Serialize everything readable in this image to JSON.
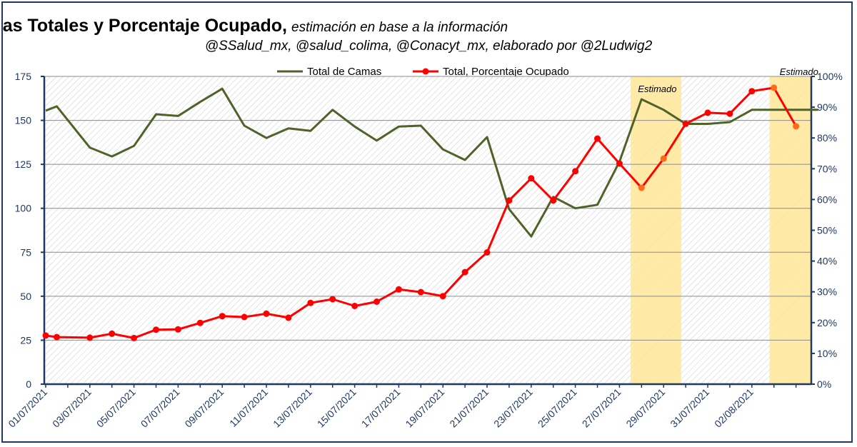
{
  "chart_data": {
    "type": "line",
    "title": "Camas Totales y Porcentaje Ocupado,",
    "subtitle_line1": "estimación en base a la información",
    "subtitle_line2": "@SSalud_mx, @salud_colima, @Conacyt_mx, elaborado por @2Ludwig2",
    "x_tick_labels": [
      "01/07/2021",
      "03/07/2021",
      "05/07/2021",
      "07/07/2021",
      "09/07/2021",
      "11/07/2021",
      "13/07/2021",
      "15/07/2021",
      "17/07/2021",
      "19/07/2021",
      "21/07/2021",
      "23/07/2021",
      "25/07/2021",
      "27/07/2021",
      "29/07/2021",
      "31/07/2021",
      "02/08/2021"
    ],
    "y_left": {
      "min": 0,
      "max": 175,
      "ticks": [
        "0",
        "25",
        "50",
        "75",
        "100",
        "125",
        "150",
        "175"
      ]
    },
    "y_right": {
      "min": 0,
      "max": 100,
      "ticks": [
        "0%",
        "10%",
        "20%",
        "30%",
        "40%",
        "50%",
        "60%",
        "70%",
        "80%",
        "90%",
        "100%"
      ]
    },
    "estimated_regions": [
      {
        "label": "Estimado",
        "start_day": 26.5,
        "end_day": 28.8
      },
      {
        "label": "Estimado",
        "start_day": 32.8,
        "end_day": 35.2
      }
    ],
    "series": [
      {
        "name": "Total de Camas",
        "color": "#4f6228",
        "axis": "left",
        "markers": false,
        "x": [
          0,
          0.5,
          2,
          3,
          4,
          5,
          6,
          7,
          8,
          9,
          10,
          11,
          12,
          13,
          14,
          15,
          16,
          17,
          18,
          19,
          20,
          21,
          22,
          23,
          24,
          25,
          26,
          27,
          28,
          29,
          30,
          31,
          32,
          33,
          34,
          35
        ],
        "values": [
          155.5,
          158,
          134.5,
          129.5,
          135.5,
          153.5,
          152.5,
          160.5,
          168,
          147,
          140,
          145.5,
          144,
          156,
          146.5,
          138.5,
          146.5,
          147,
          133.5,
          127.5,
          140.5,
          99.5,
          84,
          106.5,
          100,
          102,
          126.5,
          162,
          156,
          148,
          148,
          149,
          156,
          156,
          156,
          156
        ]
      },
      {
        "name": "Total, Porcentaje Ocupado",
        "color": "#ff0000",
        "estimated_color": "#ff6a1a",
        "axis": "right",
        "markers": true,
        "x": [
          0,
          0.5,
          2,
          3,
          4,
          5,
          6,
          7,
          8,
          9,
          10,
          11,
          12,
          13,
          14,
          15,
          16,
          17,
          18,
          19,
          20,
          21,
          22,
          23,
          24,
          25,
          26,
          27,
          28,
          29,
          30,
          31,
          32,
          33,
          34
        ],
        "values": [
          15.8,
          15.3,
          15.1,
          16.4,
          15,
          17.7,
          17.8,
          19.9,
          22.1,
          21.8,
          22.9,
          21.6,
          26.4,
          27.6,
          25.4,
          26.8,
          30.8,
          29.9,
          28.6,
          36.4,
          42.8,
          59.7,
          66.9,
          59.7,
          69.2,
          79.8,
          71.7,
          63.8,
          73.3,
          84.6,
          88.2,
          87.9,
          95.2,
          96.3,
          83.8
        ]
      }
    ]
  }
}
